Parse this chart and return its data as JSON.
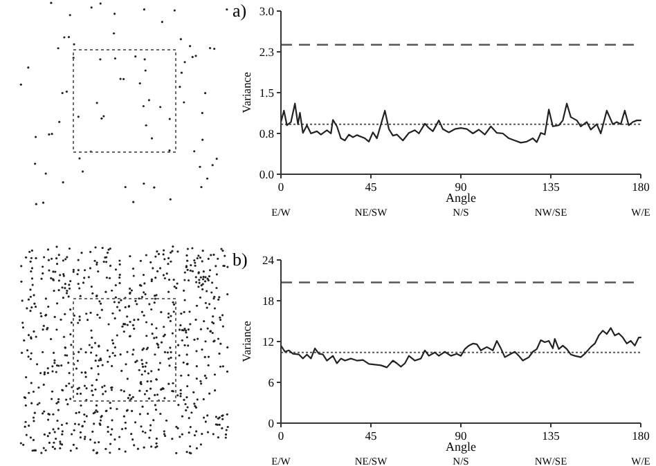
{
  "chart_data": [
    {
      "type": "line",
      "title": "a)",
      "xlabel": "Angle",
      "ylabel": "Variance",
      "x": [
        0,
        1.5,
        3,
        5,
        7,
        8.5,
        9.5,
        11,
        13,
        15,
        18,
        20,
        23,
        25,
        26,
        28,
        30,
        32,
        34,
        36,
        38,
        42,
        44,
        46,
        48,
        52,
        54,
        56,
        58,
        61,
        64,
        67,
        69,
        72,
        74,
        76,
        79,
        81,
        84,
        87,
        90,
        93,
        96,
        99,
        102,
        105,
        108,
        111,
        114,
        117,
        120,
        123,
        126,
        128,
        130,
        132,
        134,
        136,
        139,
        141,
        143,
        145,
        148,
        150,
        153,
        155,
        158,
        160,
        163,
        166,
        168,
        170,
        172,
        174,
        176,
        178,
        180
      ],
      "series": [
        {
          "color": "#222222",
          "values": [
            0.96,
            1.17,
            0.9,
            0.96,
            1.3,
            0.92,
            1.13,
            0.76,
            0.9,
            0.75,
            0.79,
            0.73,
            0.81,
            0.75,
            1.0,
            0.88,
            0.66,
            0.62,
            0.73,
            0.68,
            0.72,
            0.66,
            0.6,
            0.77,
            0.66,
            1.17,
            0.83,
            0.71,
            0.73,
            0.62,
            0.76,
            0.81,
            0.75,
            0.93,
            0.85,
            0.79,
            0.99,
            0.83,
            0.77,
            0.83,
            0.85,
            0.83,
            0.75,
            0.82,
            0.73,
            0.88,
            0.76,
            0.75,
            0.66,
            0.62,
            0.58,
            0.6,
            0.66,
            0.59,
            0.76,
            0.73,
            1.19,
            0.88,
            0.9,
            0.99,
            1.3,
            1.05,
            0.99,
            0.88,
            0.96,
            0.82,
            0.92,
            0.75,
            1.17,
            0.92,
            0.96,
            0.92,
            1.17,
            0.9,
            0.96,
            0.99,
            0.99
          ]
        }
      ],
      "xlim": [
        0,
        180
      ],
      "xticks": [
        0,
        45,
        90,
        135,
        180
      ],
      "ylim": [
        0,
        3
      ],
      "yticks": [
        {
          "value": 0,
          "label": "0.0"
        },
        {
          "value": 0.75,
          "label": "0.8"
        },
        {
          "value": 1.5,
          "label": "1.5"
        },
        {
          "value": 2.25,
          "label": "2.3"
        },
        {
          "value": 3,
          "label": "3.0"
        }
      ],
      "ref_lines": [
        {
          "axis": "y",
          "value": 2.38,
          "line_style": "dashed",
          "color": "#555555"
        },
        {
          "axis": "y",
          "value": 0.92,
          "line_style": "dotted",
          "color": "#555555"
        }
      ],
      "annotations": [
        "E/W",
        "NE/SW",
        "N/S",
        "NW/SE",
        "W/E"
      ],
      "grid": false,
      "marker": "none",
      "line_style": "solid"
    },
    {
      "type": "line",
      "title": "b)",
      "xlabel": "Angle",
      "ylabel": "Variance",
      "x": [
        0,
        2,
        4,
        6,
        9,
        11,
        13,
        15,
        17,
        19,
        21,
        23,
        26,
        28,
        30,
        32,
        35,
        38,
        41,
        44,
        47,
        50,
        53,
        56,
        58,
        60,
        62,
        64,
        67,
        70,
        72,
        74,
        77,
        79,
        82,
        85,
        88,
        90,
        92,
        94,
        96,
        98,
        100,
        103,
        106,
        108,
        110,
        112,
        115,
        117,
        119,
        121,
        124,
        126,
        128,
        130,
        132,
        134,
        136,
        137,
        139,
        141,
        143,
        145,
        147,
        150,
        152,
        155,
        157,
        159,
        161,
        163,
        165,
        167,
        169,
        171,
        173,
        175,
        177,
        179,
        180
      ],
      "series": [
        {
          "color": "#222222",
          "values": [
            11.4,
            10.5,
            10.7,
            10.2,
            10.1,
            9.5,
            10.1,
            9.5,
            11.0,
            10.2,
            10.1,
            9.2,
            9.9,
            8.8,
            9.5,
            9.2,
            9.5,
            9.2,
            9.3,
            8.7,
            8.6,
            8.5,
            8.2,
            9.2,
            8.8,
            8.3,
            8.8,
            9.9,
            9.2,
            9.5,
            10.7,
            9.9,
            10.4,
            9.9,
            10.5,
            9.9,
            10.2,
            9.9,
            10.9,
            11.4,
            11.7,
            11.6,
            10.7,
            11.2,
            10.7,
            12.1,
            11.0,
            9.7,
            10.2,
            10.5,
            9.9,
            9.2,
            9.7,
            10.5,
            10.9,
            12.2,
            11.9,
            12.1,
            11.0,
            12.4,
            10.9,
            11.4,
            10.9,
            10.1,
            9.9,
            9.7,
            10.2,
            11.2,
            11.7,
            12.9,
            13.6,
            13.1,
            14.0,
            12.9,
            13.2,
            12.6,
            11.7,
            12.1,
            11.4,
            12.6,
            12.6
          ]
        }
      ],
      "xlim": [
        0,
        180
      ],
      "xticks": [
        0,
        45,
        90,
        135,
        180
      ],
      "ylim": [
        0,
        24
      ],
      "yticks": [
        0,
        6,
        12,
        18,
        24
      ],
      "ref_lines": [
        {
          "axis": "y",
          "value": 20.7,
          "line_style": "dashed",
          "color": "#555555"
        },
        {
          "axis": "y",
          "value": 10.4,
          "line_style": "dotted",
          "color": "#555555"
        }
      ],
      "annotations": [
        "E/W",
        "NE/SW",
        "N/S",
        "NW/SE",
        "W/E"
      ],
      "grid": false,
      "marker": "none",
      "line_style": "solid"
    }
  ]
}
